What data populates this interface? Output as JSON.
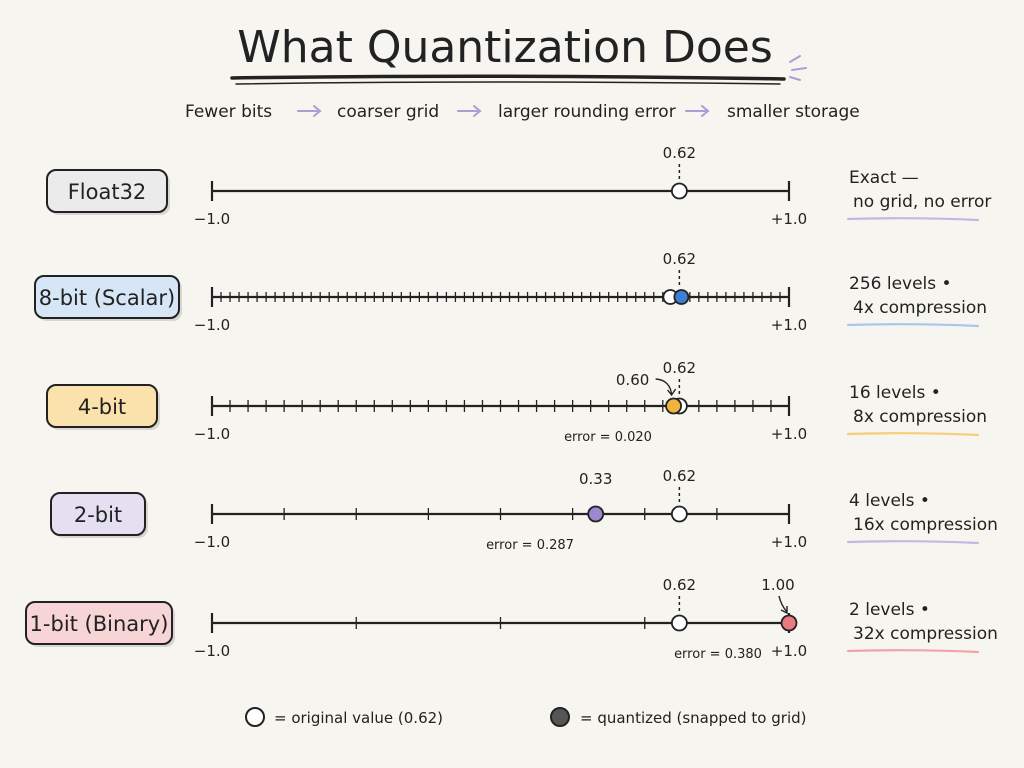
{
  "title": "What Quantization Does",
  "flow": {
    "step1": "Fewer bits",
    "step2": "coarser grid",
    "step3": "larger rounding error",
    "step4": "smaller storage"
  },
  "axis": {
    "min": -1.0,
    "max": 1.0,
    "min_label": "−1.0",
    "max_label": "+1.0"
  },
  "colors": {
    "line": "#222222",
    "float32_fill": "#ebebeb",
    "scalar8_fill": "#d6e6f7",
    "scalar8_dot": "#3d7fd6",
    "scalar8_under": "#a9c6ee",
    "bit4_fill": "#fbe2ad",
    "bit4_dot": "#f0b43c",
    "bit4_under": "#f2d07a",
    "bit2_fill": "#e4dff1",
    "bit2_dot": "#9d87cf",
    "bit2_under": "#c3b8e2",
    "bit1_fill": "#f7d5d7",
    "bit1_dot": "#eb7a80",
    "bit1_under": "#f0a4aa",
    "float32_under": "#c3b8e2"
  },
  "rows": [
    {
      "key": "float32",
      "label": "Float32",
      "levels": 0,
      "original_value": 0.62,
      "original_label": "0.62",
      "quantized_value": null,
      "quantized_label": "",
      "error_text": "",
      "note_line1": "Exact —",
      "note_line2": "no grid, no error"
    },
    {
      "key": "scalar8",
      "label": "8-bit (Scalar)",
      "levels": 256,
      "original_value": 0.62,
      "original_label": "0.62",
      "quantized_value": 0.62,
      "quantized_label": "",
      "error_text": "",
      "note_line1": "256 levels •",
      "note_line2": "4x compression"
    },
    {
      "key": "bit4",
      "label": "4-bit",
      "levels": 16,
      "original_value": 0.62,
      "original_label": "0.62",
      "quantized_value": 0.6,
      "quantized_label": "0.60",
      "error_text": "error = 0.020",
      "note_line1": "16 levels •",
      "note_line2": "8x compression"
    },
    {
      "key": "bit2",
      "label": "2-bit",
      "levels": 4,
      "original_value": 0.62,
      "original_label": "0.62",
      "quantized_value": 0.33,
      "quantized_label": "0.33",
      "error_text": "error = 0.287",
      "note_line1": "4 levels •",
      "note_line2": "16x compression"
    },
    {
      "key": "bit1",
      "label": "1-bit (Binary)",
      "levels": 2,
      "original_value": 0.62,
      "original_label": "0.62",
      "quantized_value": 1.0,
      "quantized_label": "1.00",
      "error_text": "error = 0.380",
      "note_line1": "2 levels •",
      "note_line2": "32x compression"
    }
  ],
  "legend": {
    "original": "= original value (0.62)",
    "quantized": "= quantized (snapped to grid)"
  }
}
